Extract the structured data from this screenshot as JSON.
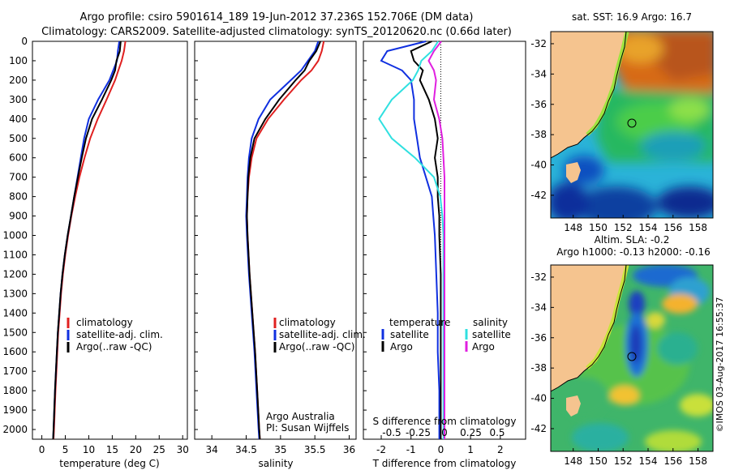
{
  "title_line1": "Argo profile: csiro 5901614_189 19-Jun-2012 37.236S 152.706E (DM data)",
  "title_line2": "Climatology: CARS2009. Satellite-adjusted climatology: synTS_20120620.nc (0.66d later)",
  "footer_vertical": "©IMOS 03-Aug-2017 16:55:37",
  "depth_ticks": [
    0,
    100,
    200,
    300,
    400,
    500,
    600,
    700,
    800,
    900,
    1000,
    1100,
    1200,
    1300,
    1400,
    1500,
    1600,
    1700,
    1800,
    1900,
    2000
  ],
  "colors": {
    "climatology": "#e02020",
    "satellite": "#1030e0",
    "argo": "#000000",
    "satellite_salinity": "#30e0e0",
    "argo_salinity": "#e020e0",
    "land": "#f5c48f"
  },
  "chart_data": [
    {
      "type": "line",
      "name": "temperature",
      "xlabel": "temperature (deg C)",
      "xlim": [
        -2,
        31
      ],
      "ylim": [
        2050,
        0
      ],
      "xticks": [
        0,
        5,
        10,
        15,
        20,
        25,
        30
      ],
      "legend": [
        "climatology",
        "satellite-adj. clim.",
        "Argo(..raw -QC)"
      ],
      "series": [
        {
          "name": "climatology",
          "depth": [
            0,
            50,
            100,
            150,
            200,
            300,
            400,
            500,
            600,
            700,
            800,
            900,
            1000,
            1100,
            1200,
            1300,
            1400,
            1500,
            1600,
            1800,
            2000,
            2050
          ],
          "values": [
            17.8,
            17.5,
            17.0,
            16.3,
            15.6,
            13.8,
            11.9,
            10.3,
            9.1,
            8.0,
            7.1,
            6.3,
            5.6,
            5.0,
            4.5,
            4.1,
            3.8,
            3.5,
            3.3,
            2.9,
            2.6,
            2.5
          ]
        },
        {
          "name": "satellite-adj. clim.",
          "depth": [
            0,
            50,
            100,
            150,
            200,
            300,
            400,
            500,
            600,
            700,
            800,
            900,
            1000,
            1100,
            1200,
            1300,
            1400,
            1500,
            1600,
            1800,
            2000,
            2050
          ],
          "values": [
            16.5,
            16.2,
            16.0,
            15.2,
            14.4,
            12.0,
            10.0,
            9.0,
            8.3,
            7.6,
            6.9,
            6.2,
            5.5,
            4.9,
            4.4,
            4.0,
            3.7,
            3.4,
            3.2,
            2.8,
            2.5,
            2.4
          ]
        },
        {
          "name": "Argo(..raw -QC)",
          "depth": [
            0,
            50,
            100,
            150,
            200,
            300,
            400,
            500,
            600,
            700,
            800,
            900,
            1000,
            1100,
            1200,
            1300,
            1400,
            1500,
            1600,
            1800,
            2000,
            2050
          ],
          "values": [
            16.8,
            16.6,
            15.9,
            15.6,
            14.8,
            12.8,
            10.7,
            9.4,
            8.5,
            7.7,
            6.9,
            6.2,
            5.5,
            4.9,
            4.4,
            4.0,
            3.7,
            3.4,
            3.2,
            2.8,
            2.5,
            2.4
          ]
        }
      ]
    },
    {
      "type": "line",
      "name": "salinity",
      "xlabel": "salinity",
      "xlim": [
        33.75,
        36.1
      ],
      "ylim": [
        2050,
        0
      ],
      "xticks": [
        34,
        34.5,
        35,
        35.5,
        36
      ],
      "legend": [
        "climatology",
        "satellite-adj. clim.",
        "Argo(..raw -QC)"
      ],
      "annotation": [
        "Argo Australia",
        "PI: Susan Wijffels"
      ],
      "series": [
        {
          "name": "climatology",
          "depth": [
            0,
            50,
            100,
            150,
            200,
            300,
            400,
            500,
            600,
            700,
            800,
            900,
            1000,
            1200,
            1400,
            1600,
            1800,
            2000,
            2050
          ],
          "values": [
            35.63,
            35.6,
            35.55,
            35.45,
            35.3,
            35.05,
            34.82,
            34.65,
            34.58,
            34.54,
            34.52,
            34.51,
            34.52,
            34.55,
            34.59,
            34.63,
            34.66,
            34.69,
            34.7
          ]
        },
        {
          "name": "satellite-adj. clim.",
          "depth": [
            0,
            50,
            100,
            150,
            200,
            300,
            400,
            500,
            600,
            700,
            800,
            900,
            1000,
            1200,
            1400,
            1600,
            1800,
            2000,
            2050
          ],
          "values": [
            35.55,
            35.5,
            35.4,
            35.3,
            35.15,
            34.85,
            34.68,
            34.58,
            34.54,
            34.52,
            34.51,
            34.5,
            34.51,
            34.54,
            34.58,
            34.62,
            34.65,
            34.68,
            34.69
          ]
        },
        {
          "name": "Argo(..raw -QC)",
          "depth": [
            0,
            50,
            100,
            150,
            200,
            300,
            400,
            500,
            600,
            700,
            800,
            900,
            1000,
            1200,
            1400,
            1600,
            1800,
            2000,
            2050
          ],
          "values": [
            35.58,
            35.52,
            35.42,
            35.35,
            35.22,
            34.98,
            34.78,
            34.62,
            34.56,
            34.53,
            34.52,
            34.51,
            34.52,
            34.55,
            34.59,
            34.63,
            34.66,
            34.69,
            34.7
          ]
        }
      ]
    },
    {
      "type": "line",
      "name": "differences",
      "xlabel_top": "S difference from climatology",
      "xlabel": "T difference from climatology",
      "xlim": [
        -2.6,
        2.85
      ],
      "ylim": [
        2050,
        0
      ],
      "xticks": [
        -2,
        -1,
        0,
        1,
        2
      ],
      "s_ticks": [
        -0.5,
        -0.25,
        0,
        0.25,
        0.5
      ],
      "s_tick_labels": [
        "-0.5",
        "-0.25",
        "0",
        "0.25",
        "0.5"
      ],
      "legend_temperature": {
        "header": "temperature",
        "items": [
          "satellite",
          "Argo"
        ]
      },
      "legend_salinity": {
        "header": "salinity",
        "items": [
          "satellite",
          "Argo"
        ]
      },
      "series": [
        {
          "name": "temperature satellite",
          "depth": [
            0,
            50,
            100,
            150,
            200,
            300,
            400,
            500,
            600,
            700,
            800,
            900,
            1000,
            1200,
            1400,
            1500,
            1600,
            1800,
            2000,
            2050
          ],
          "values": [
            -0.5,
            -1.8,
            -2.0,
            -1.3,
            -1.0,
            -0.9,
            -0.9,
            -0.8,
            -0.7,
            -0.5,
            -0.3,
            -0.25,
            -0.2,
            -0.15,
            -0.1,
            -0.1,
            -0.1,
            -0.05,
            -0.05,
            -0.05
          ]
        },
        {
          "name": "temperature Argo",
          "depth": [
            0,
            50,
            100,
            150,
            200,
            300,
            400,
            500,
            600,
            700,
            800,
            900,
            1000,
            1200,
            1400,
            1500,
            1600,
            1800,
            2000,
            2050
          ],
          "values": [
            -0.3,
            -1.0,
            -0.9,
            -0.6,
            -0.7,
            -0.4,
            -0.2,
            -0.1,
            -0.2,
            -0.1,
            -0.1,
            -0.05,
            -0.05,
            0,
            0,
            0,
            0,
            0,
            0,
            0
          ]
        },
        {
          "name": "salinity satellite",
          "depth": [
            0,
            50,
            100,
            150,
            200,
            300,
            400,
            500,
            600,
            700,
            800,
            900,
            1000,
            1200,
            1400,
            1600,
            1800,
            2000,
            2050
          ],
          "values": [
            -0.06,
            -0.12,
            -0.22,
            -0.25,
            -0.3,
            -0.5,
            -0.62,
            -0.5,
            -0.28,
            -0.1,
            -0.04,
            -0.02,
            -0.01,
            -0.01,
            -0.01,
            -0.01,
            -0.01,
            -0.01,
            -0.01
          ]
        },
        {
          "name": "salinity Argo",
          "depth": [
            0,
            50,
            100,
            150,
            200,
            300,
            400,
            500,
            600,
            700,
            800,
            900,
            1000,
            1200,
            1400,
            1600,
            1800,
            2000,
            2050
          ],
          "values": [
            -0.03,
            -0.1,
            -0.15,
            -0.1,
            -0.08,
            -0.1,
            -0.05,
            -0.02,
            -0.01,
            0,
            0,
            0,
            0,
            0,
            0,
            0,
            0,
            0,
            0
          ]
        }
      ]
    },
    {
      "type": "heatmap",
      "name": "sst-map",
      "title": "sat. SST: 16.9  Argo: 16.7",
      "xticks": [
        148,
        150,
        152,
        154,
        156,
        158
      ],
      "yticks": [
        -32,
        -34,
        -36,
        -38,
        -40,
        -42
      ],
      "xlim": [
        146.2,
        159.2
      ],
      "ylim": [
        -43.5,
        -31.2
      ],
      "argo_position": [
        152.7,
        -37.24
      ]
    },
    {
      "type": "heatmap",
      "name": "sla-map",
      "title_line1": "Altim. SLA: -0.2",
      "title_line2": "Argo h1000: -0.13  h2000: -0.16",
      "xticks": [
        148,
        150,
        152,
        154,
        156,
        158
      ],
      "yticks": [
        -32,
        -34,
        -36,
        -38,
        -40,
        -42
      ],
      "xlim": [
        146.2,
        159.2
      ],
      "ylim": [
        -43.5,
        -31.2
      ],
      "argo_position": [
        152.7,
        -37.24
      ]
    }
  ]
}
